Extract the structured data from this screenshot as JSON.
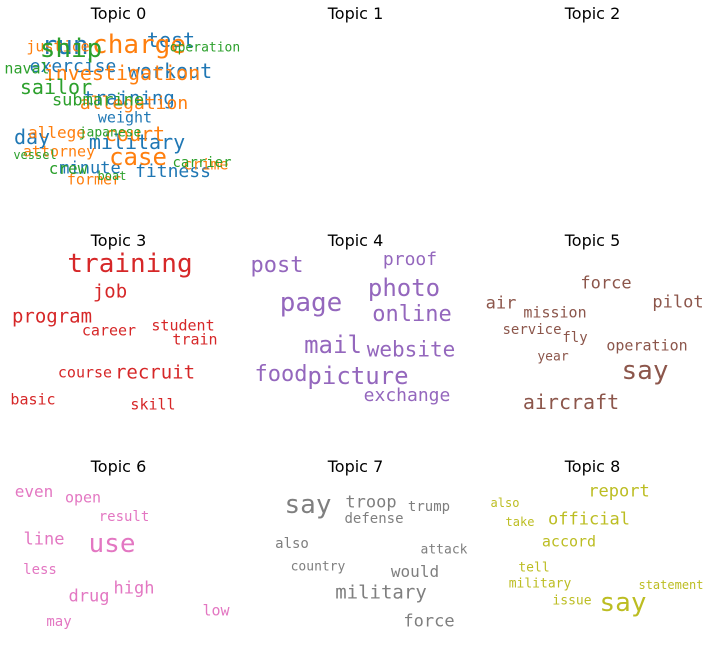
{
  "chart_data": {
    "type": "wordcloud",
    "panels": [
      {
        "title": "Topic 0",
        "color": "#1f77b4",
        "words": [
          {
            "text": "run",
            "weight": 1.0
          },
          {
            "text": "test",
            "weight": 0.8
          },
          {
            "text": "exercise",
            "weight": 0.7
          },
          {
            "text": "workout",
            "weight": 0.8
          },
          {
            "text": "training",
            "weight": 0.75
          },
          {
            "text": "weight",
            "weight": 0.55
          },
          {
            "text": "day",
            "weight": 0.8
          },
          {
            "text": "military",
            "weight": 0.85
          },
          {
            "text": "minute",
            "weight": 0.7
          },
          {
            "text": "fitness",
            "weight": 0.75
          }
        ]
      },
      {
        "title": "Topic 1",
        "color": "#ff7f0e",
        "words": [
          {
            "text": "justice",
            "weight": 0.55
          },
          {
            "text": "charge",
            "weight": 1.0
          },
          {
            "text": "investigation",
            "weight": 0.85
          },
          {
            "text": "allegation",
            "weight": 0.75
          },
          {
            "text": "allege",
            "weight": 0.6
          },
          {
            "text": "court",
            "weight": 0.85
          },
          {
            "text": "attorney",
            "weight": 0.6
          },
          {
            "text": "case",
            "weight": 1.0
          },
          {
            "text": "crime",
            "weight": 0.65
          },
          {
            "text": "former",
            "weight": 0.55
          }
        ]
      },
      {
        "title": "Topic 2",
        "color": "#2ca02c",
        "words": [
          {
            "text": "ship",
            "weight": 1.0
          },
          {
            "text": "operation",
            "weight": 0.45
          },
          {
            "text": "naval",
            "weight": 0.55
          },
          {
            "text": "sailor",
            "weight": 0.9
          },
          {
            "text": "submarine",
            "weight": 0.7
          },
          {
            "text": "japanese",
            "weight": 0.45
          },
          {
            "text": "vessel",
            "weight": 0.4
          },
          {
            "text": "crew",
            "weight": 0.6
          },
          {
            "text": "carrier",
            "weight": 0.5
          },
          {
            "text": "boat",
            "weight": 0.4
          }
        ]
      },
      {
        "title": "Topic 3",
        "color": "#d62728",
        "words": [
          {
            "text": "training",
            "weight": 1.0
          },
          {
            "text": "job",
            "weight": 0.7
          },
          {
            "text": "program",
            "weight": 0.75
          },
          {
            "text": "student",
            "weight": 0.6
          },
          {
            "text": "career",
            "weight": 0.55
          },
          {
            "text": "train",
            "weight": 0.55
          },
          {
            "text": "course",
            "weight": 0.55
          },
          {
            "text": "recruit",
            "weight": 0.7
          },
          {
            "text": "basic",
            "weight": 0.55
          },
          {
            "text": "skill",
            "weight": 0.55
          }
        ]
      },
      {
        "title": "Topic 4",
        "color": "#9467bd",
        "words": [
          {
            "text": "post",
            "weight": 0.8
          },
          {
            "text": "proof",
            "weight": 0.7
          },
          {
            "text": "photo",
            "weight": 1.0
          },
          {
            "text": "page",
            "weight": 1.0
          },
          {
            "text": "online",
            "weight": 0.9
          },
          {
            "text": "mail",
            "weight": 0.95
          },
          {
            "text": "website",
            "weight": 0.8
          },
          {
            "text": "food",
            "weight": 0.8
          },
          {
            "text": "picture",
            "weight": 0.85
          },
          {
            "text": "exchange",
            "weight": 0.7
          }
        ]
      },
      {
        "title": "Topic 5",
        "color": "#8c564b",
        "words": [
          {
            "text": "force",
            "weight": 0.7
          },
          {
            "text": "air",
            "weight": 0.7
          },
          {
            "text": "mission",
            "weight": 0.6
          },
          {
            "text": "pilot",
            "weight": 0.7
          },
          {
            "text": "service",
            "weight": 0.55
          },
          {
            "text": "fly",
            "weight": 0.55
          },
          {
            "text": "year",
            "weight": 0.6
          },
          {
            "text": "operation",
            "weight": 0.5
          },
          {
            "text": "say",
            "weight": 1.0
          },
          {
            "text": "aircraft",
            "weight": 0.8
          }
        ]
      },
      {
        "title": "Topic 6",
        "color": "#e377c2",
        "words": [
          {
            "text": "even",
            "weight": 0.6
          },
          {
            "text": "open",
            "weight": 0.55
          },
          {
            "text": "result",
            "weight": 0.5
          },
          {
            "text": "line",
            "weight": 0.65
          },
          {
            "text": "use",
            "weight": 1.0
          },
          {
            "text": "less",
            "weight": 0.5
          },
          {
            "text": "high",
            "weight": 0.6
          },
          {
            "text": "drug",
            "weight": 0.65
          },
          {
            "text": "low",
            "weight": 0.55
          },
          {
            "text": "may",
            "weight": 0.5
          }
        ]
      },
      {
        "title": "Topic 7",
        "color": "#7f7f7f",
        "words": [
          {
            "text": "say",
            "weight": 1.0
          },
          {
            "text": "troop",
            "weight": 0.65
          },
          {
            "text": "trump",
            "weight": 0.55
          },
          {
            "text": "defense",
            "weight": 0.55
          },
          {
            "text": "also",
            "weight": 0.5
          },
          {
            "text": "attack",
            "weight": 0.5
          },
          {
            "text": "country",
            "weight": 0.5
          },
          {
            "text": "would",
            "weight": 0.6
          },
          {
            "text": "military",
            "weight": 0.7
          },
          {
            "text": "force",
            "weight": 0.65
          }
        ]
      },
      {
        "title": "Topic 8",
        "color": "#bcbd22",
        "words": [
          {
            "text": "report",
            "weight": 0.75
          },
          {
            "text": "also",
            "weight": 0.45
          },
          {
            "text": "official",
            "weight": 0.8
          },
          {
            "text": "take",
            "weight": 0.45
          },
          {
            "text": "accord",
            "weight": 0.6
          },
          {
            "text": "tell",
            "weight": 0.5
          },
          {
            "text": "military",
            "weight": 0.5
          },
          {
            "text": "statement",
            "weight": 0.45
          },
          {
            "text": "issue",
            "weight": 0.5
          },
          {
            "text": "say",
            "weight": 1.0
          }
        ]
      }
    ]
  }
}
